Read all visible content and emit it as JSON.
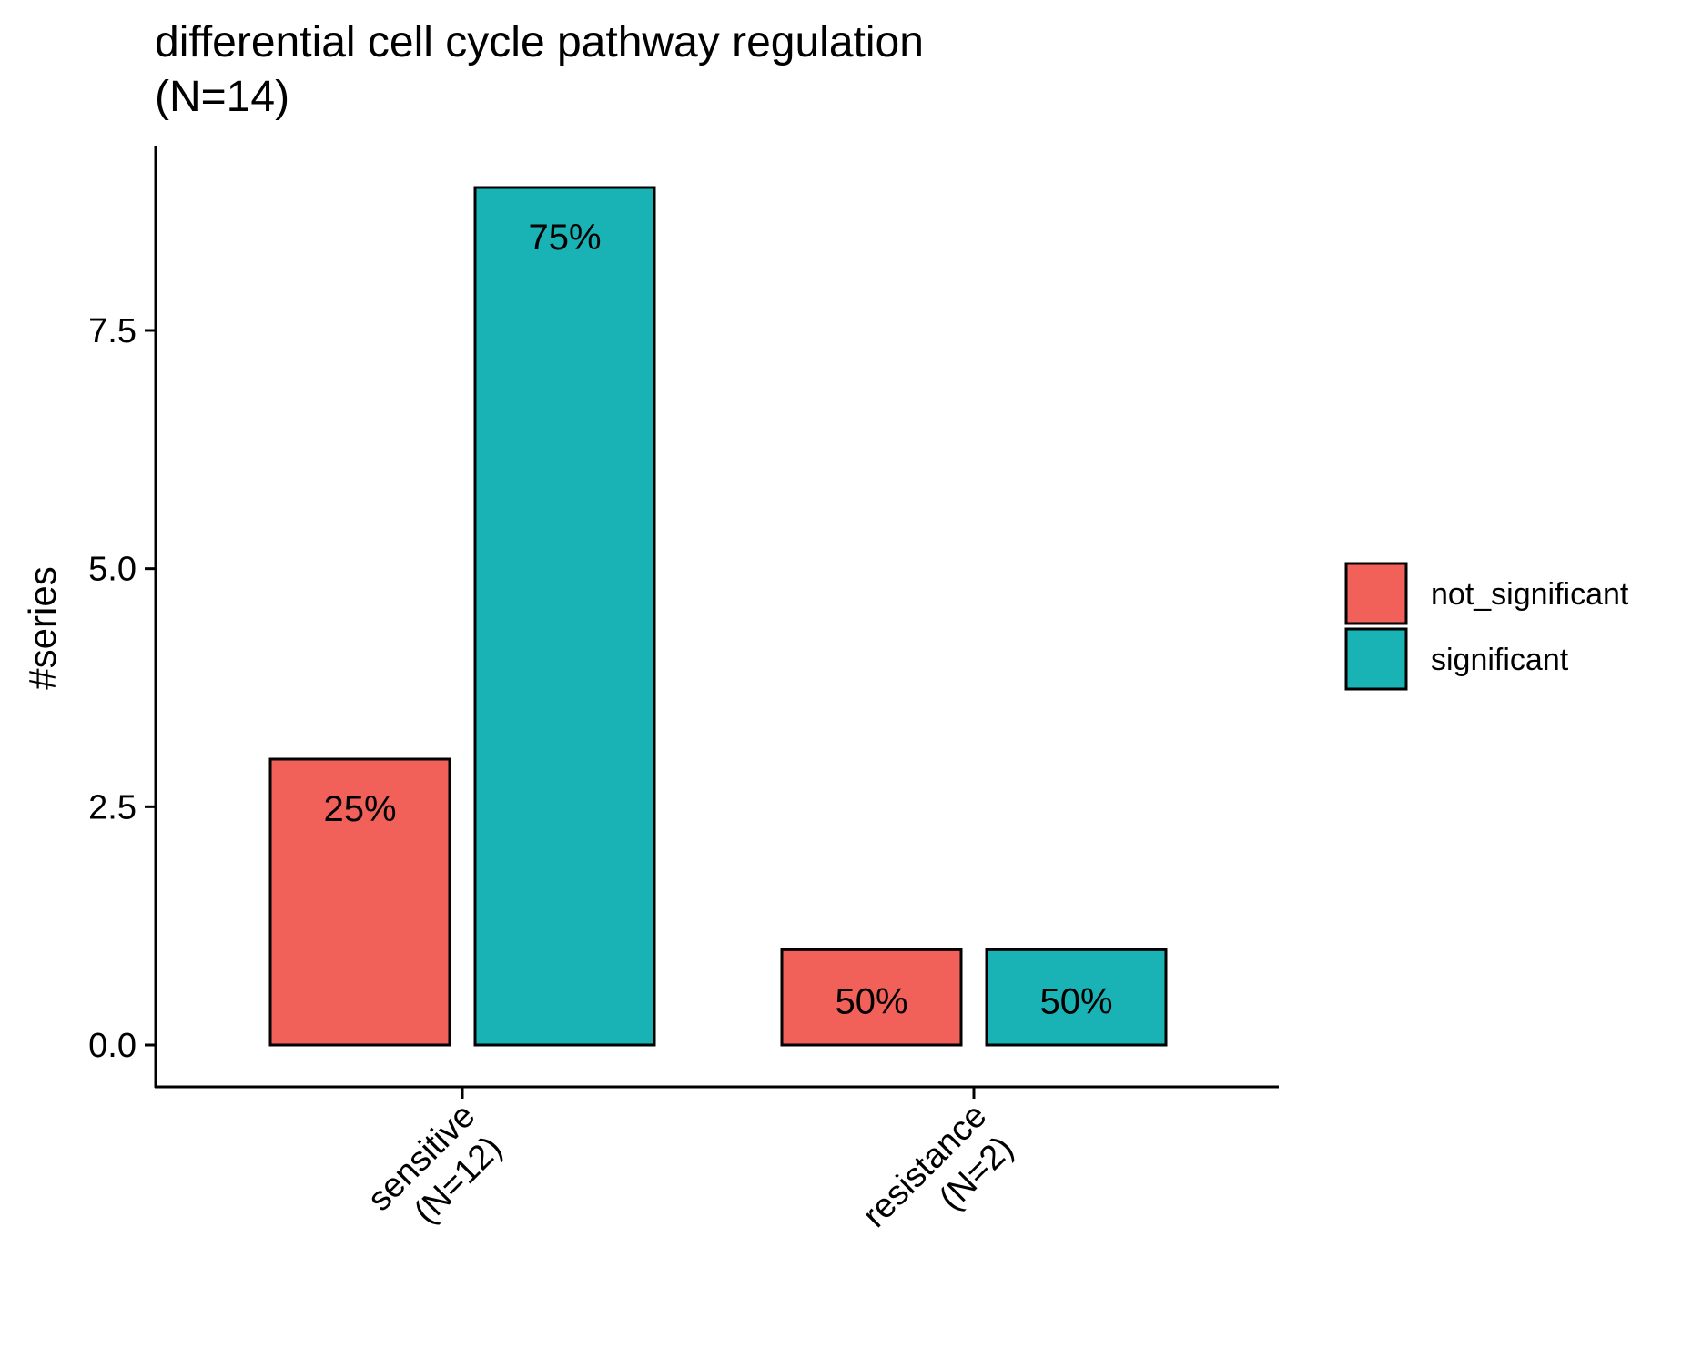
{
  "chart_data": {
    "type": "bar",
    "title": "differential cell cycle pathway regulation",
    "subtitle": "(N=14)",
    "xlabel": "",
    "ylabel": "#series",
    "ylim": [
      -1.2,
      9.4
    ],
    "yticks": [
      "0.0",
      "2.5",
      "5.0",
      "7.5"
    ],
    "categories": [
      {
        "name": "sensitive",
        "n_label": "(N=12)"
      },
      {
        "name": "resistance",
        "n_label": "(N=2)"
      }
    ],
    "series": [
      {
        "name": "not_significant",
        "color": "#F2605A",
        "values": [
          3,
          1
        ],
        "labels": [
          "25%",
          "50%"
        ]
      },
      {
        "name": "significant",
        "color": "#19B3B6",
        "values": [
          9,
          1
        ],
        "labels": [
          "75%",
          "50%"
        ]
      }
    ],
    "legend_position": "right",
    "grid": false
  }
}
